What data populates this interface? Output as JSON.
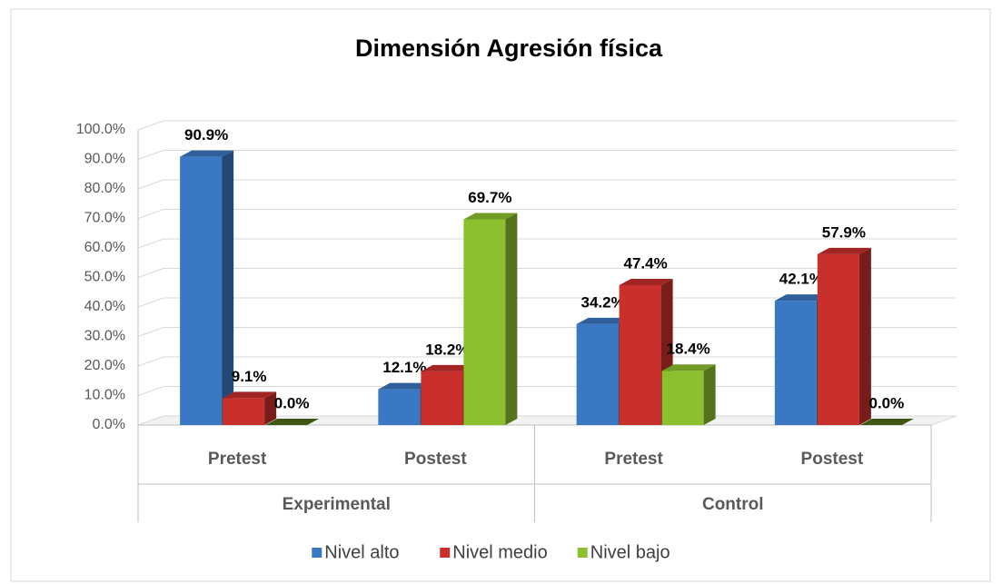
{
  "chart_data": {
    "type": "bar3d",
    "title": "Dimensión Agresión física",
    "category_groups": [
      {
        "name": "Experimental",
        "categories": [
          "Pretest",
          "Postest"
        ]
      },
      {
        "name": "Control",
        "categories": [
          "Pretest",
          "Postest"
        ]
      }
    ],
    "series": [
      {
        "name": "Nivel alto",
        "color": "#3b78c3",
        "values": [
          90.9,
          12.1,
          34.2,
          42.1
        ],
        "value_labels": [
          "90.9%",
          "12.1%",
          "34.2%",
          "42.1%"
        ]
      },
      {
        "name": "Nivel medio",
        "color": "#c9302c",
        "values": [
          9.1,
          18.2,
          47.4,
          57.9
        ],
        "value_labels": [
          "9.1%",
          "18.2%",
          "47.4%",
          "57.9%"
        ]
      },
      {
        "name": "Nivel bajo",
        "color": "#8dc02f",
        "values": [
          0.0,
          69.7,
          18.4,
          0.0
        ],
        "value_labels": [
          "0.0%",
          "69.7%",
          "18.4%",
          "0.0%"
        ]
      }
    ],
    "ylim": [
      0,
      100
    ],
    "yticks": [
      {
        "value": 0,
        "label": "0.0%"
      },
      {
        "value": 10,
        "label": "10.0%"
      },
      {
        "value": 20,
        "label": "20.0%"
      },
      {
        "value": 30,
        "label": "30.0%"
      },
      {
        "value": 40,
        "label": "40.0%"
      },
      {
        "value": 50,
        "label": "50.0%"
      },
      {
        "value": 60,
        "label": "60.0%"
      },
      {
        "value": 70,
        "label": "70.0%"
      },
      {
        "value": 80,
        "label": "80.0%"
      },
      {
        "value": 90,
        "label": "90.0%"
      },
      {
        "value": 100,
        "label": "100.0%"
      }
    ],
    "grid": true,
    "legend": "bottom"
  }
}
